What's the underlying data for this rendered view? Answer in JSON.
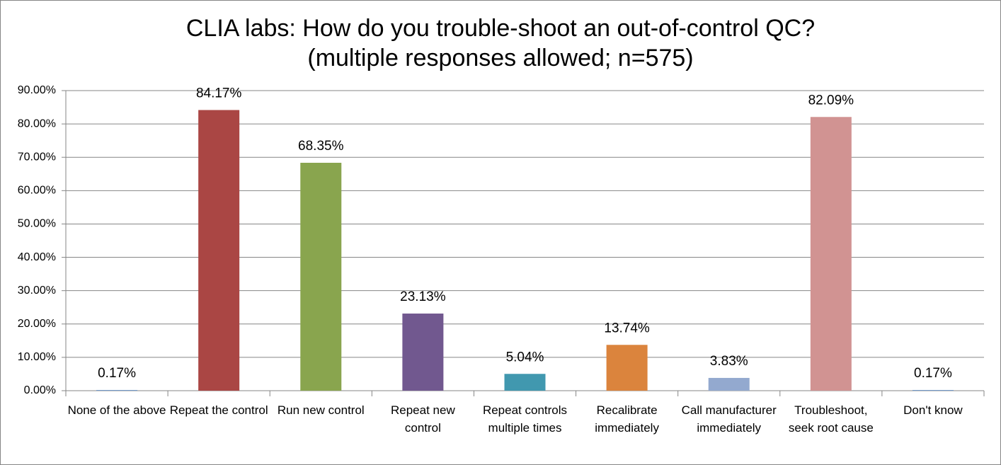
{
  "chart_data": {
    "type": "bar",
    "title": "CLIA labs: How do you trouble-shoot an out-of-control QC?",
    "subtitle": "(multiple responses allowed; n=575)",
    "categories": [
      "None of the above",
      "Repeat the control",
      "Run new control",
      "Repeat new control",
      "Repeat controls multiple times",
      "Recalibrate immediately",
      "Call manufacturer immediately",
      "Troubleshoot, seek root cause",
      "Don't know"
    ],
    "values": [
      0.17,
      84.17,
      68.35,
      23.13,
      5.04,
      13.74,
      3.83,
      82.09,
      0.17
    ],
    "value_labels": [
      "0.17%",
      "84.17%",
      "68.35%",
      "23.13%",
      "5.04%",
      "13.74%",
      "3.83%",
      "82.09%",
      "0.17%"
    ],
    "colors": [
      "#4f81bd",
      "#aa4644",
      "#89a54e",
      "#71588f",
      "#4198af",
      "#db843d",
      "#93a9cf",
      "#d19392",
      "#4f81bd"
    ],
    "ylim": [
      0,
      90
    ],
    "yticks": [
      {
        "value": 0,
        "label": "0.00%"
      },
      {
        "value": 10,
        "label": "10.00%"
      },
      {
        "value": 20,
        "label": "20.00%"
      },
      {
        "value": 30,
        "label": "30.00%"
      },
      {
        "value": 40,
        "label": "40.00%"
      },
      {
        "value": 50,
        "label": "50.00%"
      },
      {
        "value": 60,
        "label": "60.00%"
      },
      {
        "value": 70,
        "label": "70.00%"
      },
      {
        "value": 80,
        "label": "80.00%"
      },
      {
        "value": 90,
        "label": "90.00%"
      }
    ],
    "grid": true
  }
}
